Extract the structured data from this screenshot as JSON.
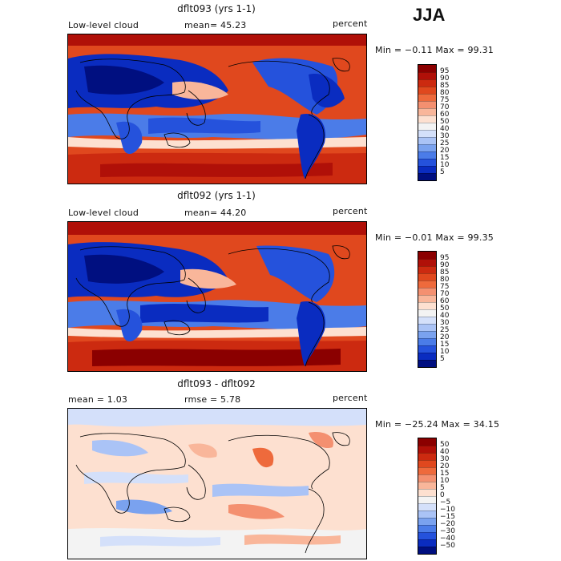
{
  "season": "JJA",
  "panels": [
    {
      "title": "dflt093 (yrs 1-1)",
      "left_label": "Low-level cloud",
      "stat_label": "mean=",
      "stat_value": "45.23",
      "units": "percent",
      "minmax": "Min =  −0.11  Max =  99.31",
      "colorbar": {
        "labels": [
          "95",
          "90",
          "85",
          "80",
          "75",
          "70",
          "60",
          "50",
          "40",
          "30",
          "25",
          "20",
          "15",
          "10",
          "5"
        ],
        "colors": [
          "#8b0000",
          "#b01008",
          "#cc2a10",
          "#e0481e",
          "#ee6a3c",
          "#f49070",
          "#f9b69a",
          "#fde0d0",
          "#f3f3f3",
          "#d4e0fa",
          "#aac3f6",
          "#7aa2ef",
          "#4b7ce8",
          "#2552dc",
          "#0a2cc0",
          "#000f80"
        ]
      }
    },
    {
      "title": "dflt092 (yrs 1-1)",
      "left_label": "Low-level cloud",
      "stat_label": "mean=",
      "stat_value": "44.20",
      "units": "percent",
      "minmax": "Min =  −0.01  Max =  99.35",
      "colorbar": {
        "labels": [
          "95",
          "90",
          "85",
          "80",
          "75",
          "70",
          "60",
          "50",
          "40",
          "30",
          "25",
          "20",
          "15",
          "10",
          "5"
        ],
        "colors": [
          "#8b0000",
          "#b01008",
          "#cc2a10",
          "#e0481e",
          "#ee6a3c",
          "#f49070",
          "#f9b69a",
          "#fde0d0",
          "#f3f3f3",
          "#d4e0fa",
          "#aac3f6",
          "#7aa2ef",
          "#4b7ce8",
          "#2552dc",
          "#0a2cc0",
          "#000f80"
        ]
      }
    },
    {
      "title": "dflt093 - dflt092",
      "left_label": "mean =   1.03",
      "stat_label": "rmse =",
      "stat_value": "5.78",
      "units": "percent",
      "minmax": "Min = −25.24  Max =  34.15",
      "colorbar": {
        "labels": [
          "50",
          "40",
          "30",
          "20",
          "15",
          "10",
          "5",
          "0",
          "−5",
          "−10",
          "−15",
          "−20",
          "−30",
          "−40",
          "−50"
        ],
        "colors": [
          "#8b0000",
          "#b01008",
          "#cc2a10",
          "#e0481e",
          "#ee6a3c",
          "#f49070",
          "#f9b69a",
          "#fde0d0",
          "#f3f3f3",
          "#d4e0fa",
          "#aac3f6",
          "#7aa2ef",
          "#4b7ce8",
          "#2552dc",
          "#0a2cc0",
          "#000f80"
        ]
      }
    }
  ]
}
